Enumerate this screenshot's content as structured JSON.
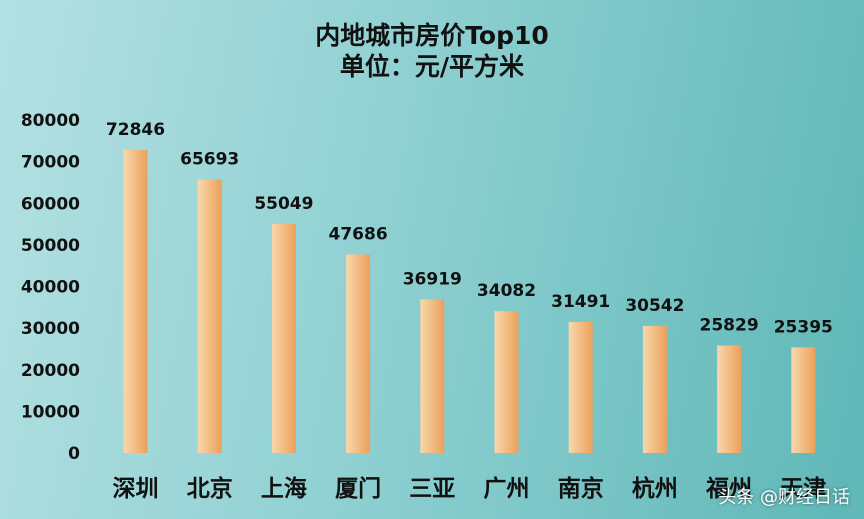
{
  "chart_data": {
    "type": "bar",
    "title": "内地城市房价Top10",
    "subtitle": "单位：元/平方米",
    "categories": [
      "深圳",
      "北京",
      "上海",
      "厦门",
      "三亚",
      "广州",
      "南京",
      "杭州",
      "福州",
      "天津"
    ],
    "values": [
      72846,
      65693,
      55049,
      47686,
      36919,
      34082,
      31491,
      30542,
      25829,
      25395
    ],
    "ylim": [
      0,
      80000
    ],
    "yticks": [
      "0",
      "10000",
      "20000",
      "30000",
      "40000",
      "50000",
      "60000",
      "70000",
      "80000"
    ],
    "grid": false,
    "legend": "none",
    "colors": {
      "bar_light": "#f8d8ac",
      "bar_dark": "#eba05a",
      "background": "#8fd0d2"
    }
  },
  "watermark": "头条 @财经日话"
}
